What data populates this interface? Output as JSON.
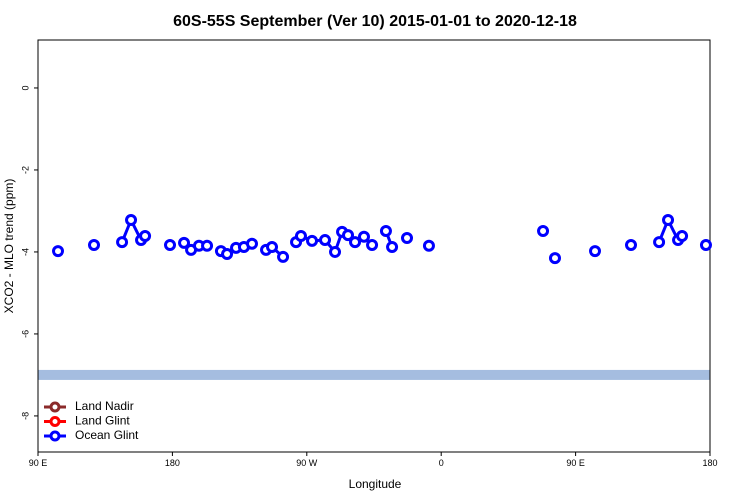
{
  "chart_data": {
    "type": "line",
    "title": "60S-55S September (Ver 10)   2015-01-01 to 2020-12-18",
    "xlabel": "Longitude",
    "ylabel": "XCO2 - MLO trend (ppm)",
    "xlim": [
      90,
      540
    ],
    "ylim": [
      -8.88,
      1.17
    ],
    "xticks": [
      {
        "value": 90,
        "label": "90 E"
      },
      {
        "value": 180,
        "label": "180"
      },
      {
        "value": 270,
        "label": "90 W"
      },
      {
        "value": 360,
        "label": "0"
      },
      {
        "value": 450,
        "label": "90 E"
      },
      {
        "value": 540,
        "label": "180"
      }
    ],
    "yticks": [
      0,
      -2,
      -4,
      -6,
      -8
    ],
    "hline": {
      "value": -7,
      "color": "#a5bde0"
    },
    "legend": "bottom-left",
    "series": [
      {
        "name": "Land Nadir",
        "color": "#8b2a2a",
        "x": [],
        "values": []
      },
      {
        "name": "Land Glint",
        "color": "#ff0000",
        "x": [],
        "values": []
      },
      {
        "name": "Ocean Glint",
        "color": "#0000ff",
        "x": [
          103.4,
          null,
          127.5,
          null,
          146.3,
          152.3,
          159.0,
          161.7,
          null,
          178.4,
          null,
          187.8,
          192.5,
          197.8,
          203.2,
          null,
          212.5,
          216.6,
          222.6,
          227.9,
          233.3,
          null,
          242.7,
          246.7,
          254.1,
          null,
          262.8,
          266.1,
          273.5,
          282.2,
          288.9,
          293.6,
          297.6,
          302.3,
          308.3,
          313.7,
          null,
          323.0,
          327.1,
          null,
          337.1,
          null,
          351.8,
          null,
          428.2,
          null,
          436.2,
          null,
          463.0,
          null,
          487.1,
          null,
          505.9,
          511.9,
          518.6,
          521.3,
          null,
          537.3
        ],
        "values": [
          -3.98,
          null,
          -3.83,
          null,
          -3.76,
          -3.22,
          -3.71,
          -3.61,
          null,
          -3.83,
          null,
          -3.78,
          -3.95,
          -3.85,
          -3.85,
          null,
          -3.98,
          -4.05,
          -3.9,
          -3.88,
          -3.8,
          null,
          -3.95,
          -3.88,
          -4.12,
          null,
          -3.76,
          -3.61,
          -3.73,
          -3.71,
          -4.0,
          -3.51,
          -3.59,
          -3.76,
          -3.63,
          -3.83,
          null,
          -3.49,
          -3.88,
          null,
          -3.66,
          null,
          -3.85,
          null,
          -3.49,
          null,
          -4.15,
          null,
          -3.98,
          null,
          -3.83,
          null,
          -3.76,
          -3.22,
          -3.71,
          -3.61,
          null,
          -3.83
        ]
      }
    ]
  }
}
